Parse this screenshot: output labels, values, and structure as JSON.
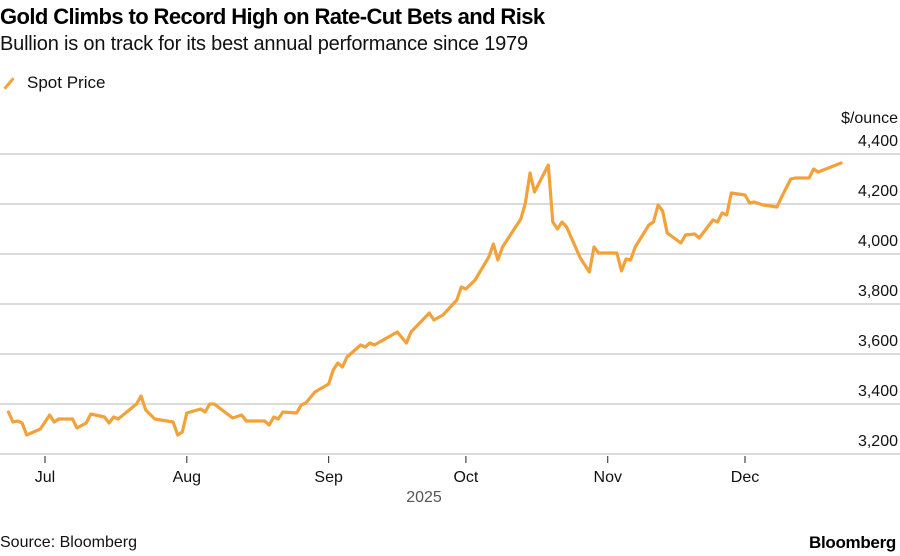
{
  "header": {
    "title": "Gold Climbs to Record High on Rate-Cut Bets and Risk",
    "subtitle": "Bullion is on track for its best annual performance since 1979"
  },
  "footer": {
    "source": "Source: Bloomberg",
    "brand": "Bloomberg"
  },
  "colors": {
    "line": "#f2a23a",
    "grid": "#cfcfcf",
    "axis_text": "#111111",
    "year_text": "#555555"
  },
  "chart_data": {
    "type": "line",
    "title": "Gold Climbs to Record High on Rate-Cut Bets and Risk",
    "subtitle": "Bullion is on track for its best annual performance since 1979",
    "xlabel": "2025",
    "ylabel": "$/ounce",
    "ylim": [
      3200,
      4400
    ],
    "xlim": [
      "2025-06-23",
      "2025-12-22"
    ],
    "y_ticks": [
      3200,
      3400,
      3600,
      3800,
      4000,
      4200,
      4400
    ],
    "y_tick_labels": [
      "3,200",
      "3,400",
      "3,600",
      "3,800",
      "4,000",
      "4,200",
      "4,400"
    ],
    "x_ticks": [
      {
        "date": "2025-07-01",
        "label": "Jul"
      },
      {
        "date": "2025-08-01",
        "label": "Aug"
      },
      {
        "date": "2025-09-01",
        "label": "Sep"
      },
      {
        "date": "2025-10-01",
        "label": "Oct"
      },
      {
        "date": "2025-11-01",
        "label": "Nov"
      },
      {
        "date": "2025-12-01",
        "label": "Dec"
      }
    ],
    "grid": true,
    "legend": {
      "position": "top-left",
      "entries": [
        "Spot Price"
      ]
    },
    "series": [
      {
        "name": "Spot Price",
        "points": [
          [
            "2025-06-23",
            3368
          ],
          [
            "2025-06-24",
            3328
          ],
          [
            "2025-06-25",
            3332
          ],
          [
            "2025-06-26",
            3324
          ],
          [
            "2025-06-27",
            3276
          ],
          [
            "2025-06-30",
            3300
          ],
          [
            "2025-07-02",
            3356
          ],
          [
            "2025-07-03",
            3328
          ],
          [
            "2025-07-04",
            3340
          ],
          [
            "2025-07-07",
            3340
          ],
          [
            "2025-07-08",
            3304
          ],
          [
            "2025-07-10",
            3324
          ],
          [
            "2025-07-11",
            3360
          ],
          [
            "2025-07-14",
            3348
          ],
          [
            "2025-07-15",
            3324
          ],
          [
            "2025-07-16",
            3348
          ],
          [
            "2025-07-17",
            3340
          ],
          [
            "2025-07-21",
            3400
          ],
          [
            "2025-07-22",
            3432
          ],
          [
            "2025-07-23",
            3376
          ],
          [
            "2025-07-25",
            3340
          ],
          [
            "2025-07-29",
            3328
          ],
          [
            "2025-07-30",
            3276
          ],
          [
            "2025-07-31",
            3288
          ],
          [
            "2025-08-01",
            3364
          ],
          [
            "2025-08-04",
            3380
          ],
          [
            "2025-08-05",
            3368
          ],
          [
            "2025-08-06",
            3400
          ],
          [
            "2025-08-07",
            3400
          ],
          [
            "2025-08-11",
            3344
          ],
          [
            "2025-08-13",
            3356
          ],
          [
            "2025-08-14",
            3332
          ],
          [
            "2025-08-18",
            3332
          ],
          [
            "2025-08-19",
            3316
          ],
          [
            "2025-08-20",
            3348
          ],
          [
            "2025-08-21",
            3340
          ],
          [
            "2025-08-22",
            3368
          ],
          [
            "2025-08-25",
            3364
          ],
          [
            "2025-08-26",
            3396
          ],
          [
            "2025-08-27",
            3404
          ],
          [
            "2025-08-29",
            3448
          ],
          [
            "2025-09-01",
            3480
          ],
          [
            "2025-09-02",
            3536
          ],
          [
            "2025-09-03",
            3564
          ],
          [
            "2025-09-04",
            3548
          ],
          [
            "2025-09-05",
            3588
          ],
          [
            "2025-09-08",
            3636
          ],
          [
            "2025-09-09",
            3628
          ],
          [
            "2025-09-10",
            3644
          ],
          [
            "2025-09-11",
            3636
          ],
          [
            "2025-09-16",
            3688
          ],
          [
            "2025-09-18",
            3644
          ],
          [
            "2025-09-19",
            3688
          ],
          [
            "2025-09-23",
            3764
          ],
          [
            "2025-09-24",
            3736
          ],
          [
            "2025-09-26",
            3756
          ],
          [
            "2025-09-29",
            3816
          ],
          [
            "2025-09-30",
            3868
          ],
          [
            "2025-10-01",
            3860
          ],
          [
            "2025-10-03",
            3896
          ],
          [
            "2025-10-06",
            3988
          ],
          [
            "2025-10-07",
            4040
          ],
          [
            "2025-10-08",
            3976
          ],
          [
            "2025-10-09",
            4028
          ],
          [
            "2025-10-13",
            4140
          ],
          [
            "2025-10-14",
            4204
          ],
          [
            "2025-10-15",
            4324
          ],
          [
            "2025-10-16",
            4248
          ],
          [
            "2025-10-19",
            4356
          ],
          [
            "2025-10-20",
            4128
          ],
          [
            "2025-10-21",
            4100
          ],
          [
            "2025-10-22",
            4128
          ],
          [
            "2025-10-23",
            4108
          ],
          [
            "2025-10-26",
            3984
          ],
          [
            "2025-10-28",
            3928
          ],
          [
            "2025-10-29",
            4028
          ],
          [
            "2025-10-30",
            4004
          ],
          [
            "2025-11-03",
            4004
          ],
          [
            "2025-11-04",
            3932
          ],
          [
            "2025-11-05",
            3980
          ],
          [
            "2025-11-06",
            3976
          ],
          [
            "2025-11-07",
            4028
          ],
          [
            "2025-11-10",
            4116
          ],
          [
            "2025-11-11",
            4128
          ],
          [
            "2025-11-12",
            4196
          ],
          [
            "2025-11-13",
            4172
          ],
          [
            "2025-11-14",
            4084
          ],
          [
            "2025-11-17",
            4044
          ],
          [
            "2025-11-18",
            4076
          ],
          [
            "2025-11-20",
            4080
          ],
          [
            "2025-11-21",
            4064
          ],
          [
            "2025-11-24",
            4136
          ],
          [
            "2025-11-25",
            4128
          ],
          [
            "2025-11-26",
            4164
          ],
          [
            "2025-11-27",
            4156
          ],
          [
            "2025-11-28",
            4244
          ],
          [
            "2025-12-01",
            4236
          ],
          [
            "2025-12-02",
            4204
          ],
          [
            "2025-12-03",
            4208
          ],
          [
            "2025-12-05",
            4196
          ],
          [
            "2025-12-08",
            4188
          ],
          [
            "2025-12-09",
            4228
          ],
          [
            "2025-12-11",
            4300
          ],
          [
            "2025-12-12",
            4304
          ],
          [
            "2025-12-15",
            4304
          ],
          [
            "2025-12-16",
            4340
          ],
          [
            "2025-12-17",
            4328
          ],
          [
            "2025-12-22",
            4364
          ]
        ]
      }
    ]
  }
}
